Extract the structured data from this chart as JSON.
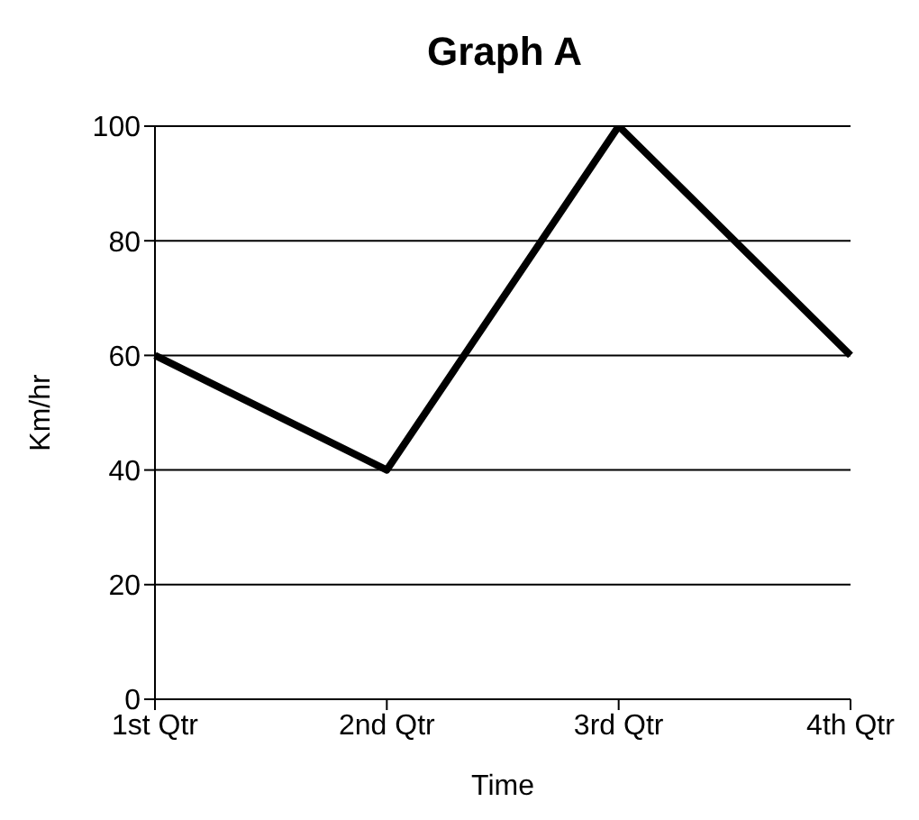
{
  "chart_data": {
    "type": "line",
    "title": "Graph A",
    "xlabel": "Time",
    "ylabel": "Km/hr",
    "categories": [
      "1st Qtr",
      "2nd Qtr",
      "3rd Qtr",
      "4th Qtr"
    ],
    "series": [
      {
        "color": "#000000",
        "values": [
          60,
          40,
          100,
          60
        ]
      }
    ],
    "ylim": [
      0,
      100
    ],
    "yticks": [
      0,
      20,
      40,
      60,
      80,
      100
    ],
    "grid": "y",
    "legend": false,
    "marker": "none",
    "line_style": "solid"
  }
}
